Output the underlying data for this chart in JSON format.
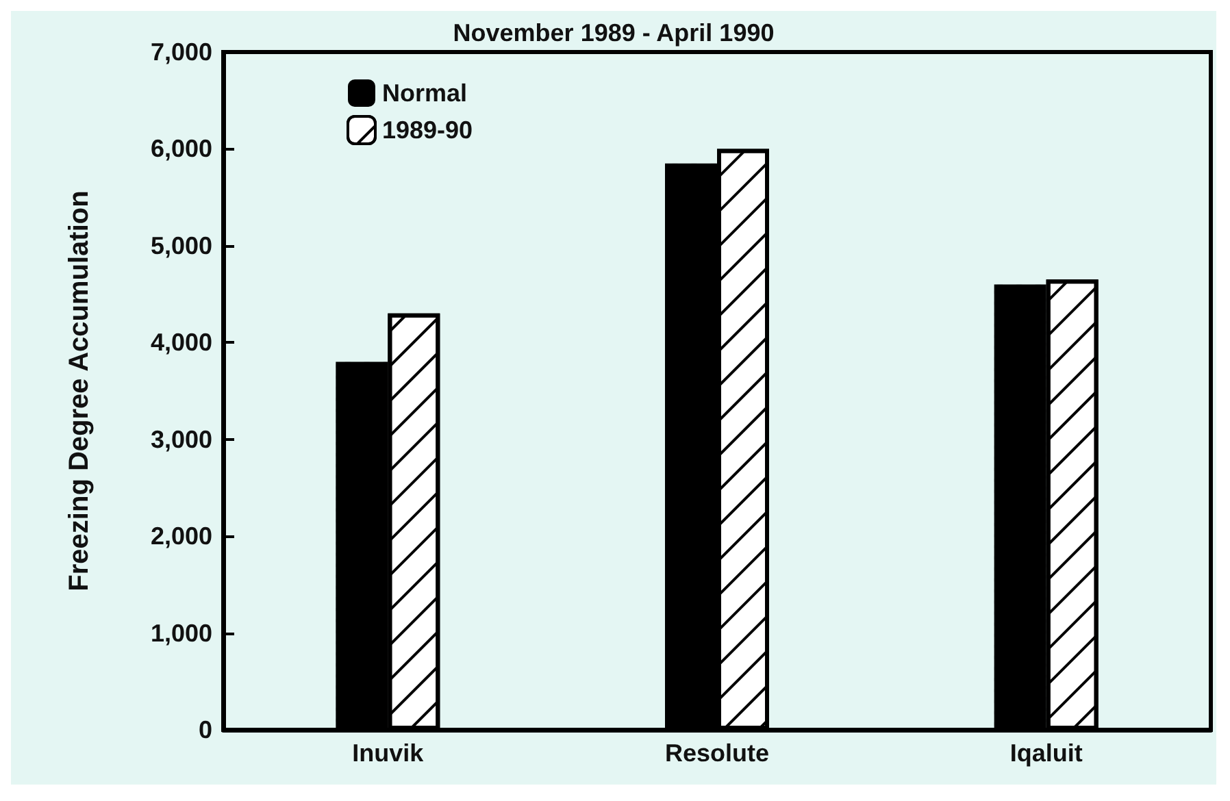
{
  "chart_data": {
    "type": "bar",
    "title": "November 1989 - April 1990",
    "ylabel": "Freezing Degree Accumulation",
    "categories": [
      "Inuvik",
      "Resolute",
      "Iqaluit"
    ],
    "series": [
      {
        "name": "Normal",
        "color": "#000000",
        "values": [
          3800,
          5850,
          4600
        ]
      },
      {
        "name": "1989-90",
        "color": "#ffffff",
        "values": [
          4300,
          6000,
          4650
        ]
      }
    ],
    "ylim": [
      0,
      7000
    ],
    "yticks": [
      {
        "value": 0,
        "label": "0"
      },
      {
        "value": 1000,
        "label": "1,000"
      },
      {
        "value": 2000,
        "label": "2,000"
      },
      {
        "value": 3000,
        "label": "3,000"
      },
      {
        "value": 4000,
        "label": "4,000"
      },
      {
        "value": 5000,
        "label": "5,000"
      },
      {
        "value": 6000,
        "label": "6,000"
      },
      {
        "value": 7000,
        "label": "7,000"
      }
    ],
    "grid": false,
    "legend": "top left"
  }
}
